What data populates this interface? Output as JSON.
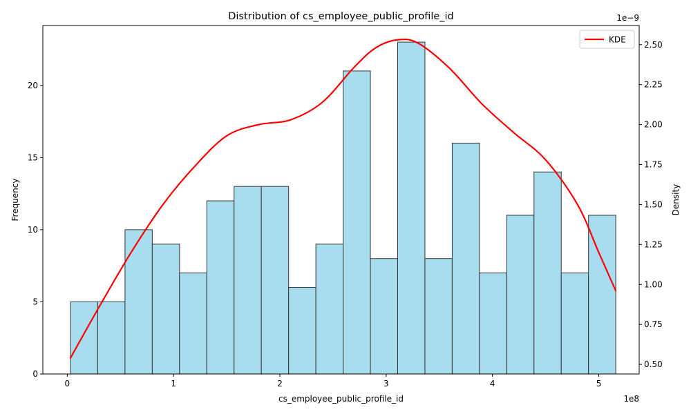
{
  "chart_data": {
    "type": "bar",
    "title": "Distribution of cs_employee_public_profile_id",
    "xlabel": "cs_employee_public_profile_id",
    "ylabel": "Frequency",
    "y2label": "Density",
    "x_offset_text": "1e8",
    "y2_offset_text": "1e−9",
    "xlim": [
      -0.23,
      5.38
    ],
    "ylim": [
      0,
      24.15
    ],
    "y2lim": [
      0.44,
      2.62
    ],
    "x_ticks": [
      0,
      1,
      2,
      3,
      4,
      5
    ],
    "x_tick_labels": [
      "0",
      "1",
      "2",
      "3",
      "4",
      "5"
    ],
    "y_ticks": [
      0,
      5,
      10,
      15,
      20
    ],
    "y_tick_labels": [
      "0",
      "5",
      "10",
      "15",
      "20"
    ],
    "y2_ticks": [
      0.5,
      0.75,
      1.0,
      1.25,
      1.5,
      1.75,
      2.0,
      2.25,
      2.5
    ],
    "y2_tick_labels": [
      "0.50",
      "0.75",
      "1.00",
      "1.25",
      "1.50",
      "1.75",
      "2.00",
      "2.25",
      "2.50"
    ],
    "bin_edges": [
      0.03,
      0.2865,
      0.543,
      0.7995,
      1.056,
      1.3125,
      1.569,
      1.8255,
      2.082,
      2.3385,
      2.595,
      2.8515,
      3.108,
      3.3645,
      3.621,
      3.8775,
      4.134,
      4.3905,
      4.647,
      4.9035,
      5.16
    ],
    "values": [
      5,
      5,
      10,
      9,
      7,
      12,
      13,
      13,
      6,
      9,
      21,
      8,
      23,
      8,
      16,
      7,
      11,
      14,
      7,
      11
    ],
    "bar_color": "#a8dcef",
    "bar_edge_color": "#333333",
    "kde": {
      "name": "KDE",
      "color": "#ff0000",
      "x": [
        0.03,
        0.3,
        0.6,
        0.9,
        1.2,
        1.5,
        1.8,
        2.1,
        2.4,
        2.7,
        2.9,
        3.1,
        3.3,
        3.6,
        3.9,
        4.2,
        4.5,
        4.8,
        5.0,
        5.16
      ],
      "y": [
        0.54,
        0.86,
        1.2,
        1.5,
        1.74,
        1.93,
        2.0,
        2.03,
        2.14,
        2.36,
        2.48,
        2.53,
        2.51,
        2.35,
        2.13,
        1.95,
        1.78,
        1.5,
        1.2,
        0.96
      ]
    },
    "legend": {
      "entries": [
        "KDE"
      ],
      "position": "upper right"
    },
    "grid": false
  }
}
